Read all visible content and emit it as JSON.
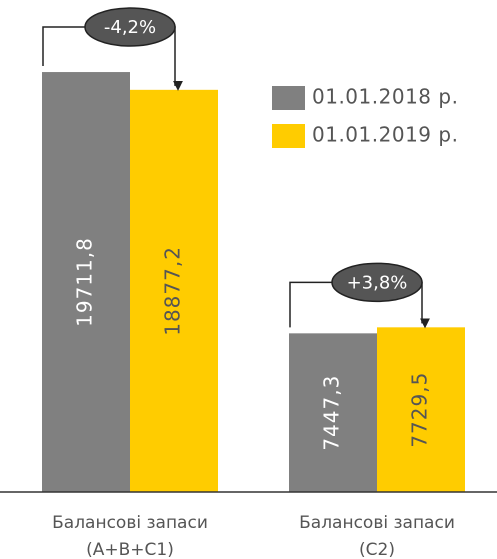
{
  "chart_data": {
    "type": "bar",
    "categories": [
      "Балансові запаси (A+B+C1)",
      "Балансові запаси (C2)"
    ],
    "series": [
      {
        "name": "01.01.2018 р.",
        "color": "#808080",
        "values": [
          19711.8,
          7447.3
        ],
        "value_labels": [
          "19711,8",
          "7447,3"
        ]
      },
      {
        "name": "01.01.2019 р.",
        "color": "#ffcc00",
        "values": [
          18877.2,
          7729.5
        ],
        "value_labels": [
          "18877,2",
          "7729,5"
        ]
      }
    ],
    "annotations": [
      "-4,2%",
      "+3,8%"
    ],
    "ylim": [
      0,
      23000
    ],
    "legend": "upper right"
  }
}
